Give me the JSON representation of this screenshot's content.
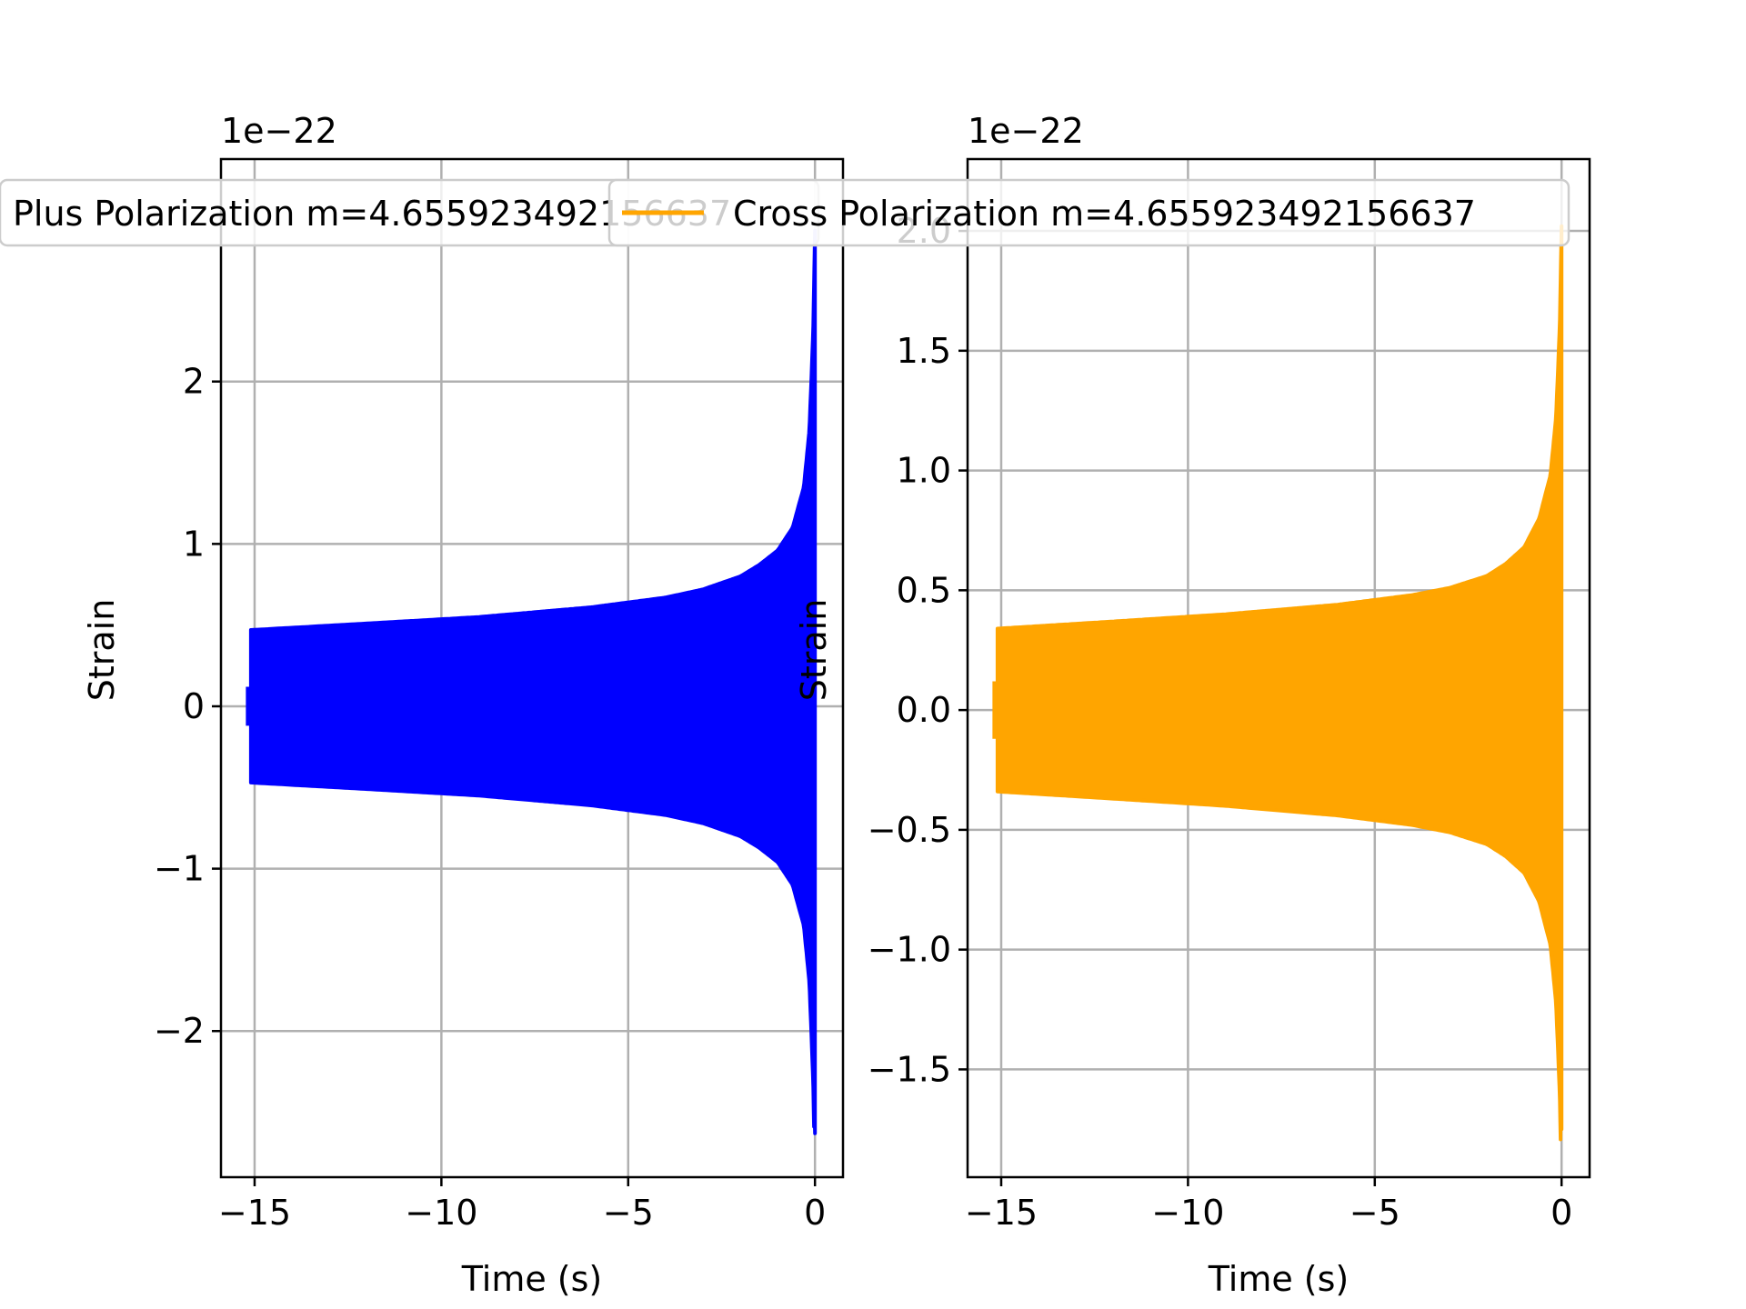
{
  "colors": {
    "background": "#ffffff",
    "grid": "#b0b0b0",
    "axes": "#000000"
  },
  "chart_data": [
    {
      "type": "line",
      "title": "",
      "xlabel": "Time (s)",
      "ylabel": "Strain",
      "offset_text": "1e−22",
      "xlim": [
        -15.9,
        0.75
      ],
      "ylim": [
        -2.9,
        3.37
      ],
      "xticks": [
        -15,
        -10,
        -5,
        0
      ],
      "xtick_labels": [
        "−15",
        "−10",
        "−5",
        "0"
      ],
      "yticks": [
        -2,
        -1,
        0,
        1,
        2
      ],
      "ytick_labels": [
        "−2",
        "−1",
        "0",
        "1",
        "2"
      ],
      "grid": true,
      "legend_position": "top-center",
      "series": [
        {
          "name": "Plus Polarization m=4.655923492156637",
          "color": "#0000ff",
          "t_start": -15.1,
          "t_end": 0.0,
          "envelope": [
            [
              -15.1,
              0.47
            ],
            [
              -12,
              0.51
            ],
            [
              -9,
              0.55
            ],
            [
              -6,
              0.61
            ],
            [
              -4,
              0.67
            ],
            [
              -3,
              0.72
            ],
            [
              -2,
              0.8
            ],
            [
              -1.5,
              0.87
            ],
            [
              -1,
              0.96
            ],
            [
              -0.6,
              1.1
            ],
            [
              -0.3,
              1.35
            ],
            [
              -0.15,
              1.7
            ],
            [
              -0.05,
              2.3
            ],
            [
              0.0,
              2.93
            ]
          ],
          "end_min": -2.63
        }
      ]
    },
    {
      "type": "line",
      "title": "",
      "xlabel": "Time (s)",
      "ylabel": "Strain",
      "offset_text": "1e−22",
      "xlim": [
        -15.9,
        0.75
      ],
      "ylim": [
        -1.95,
        2.3
      ],
      "xticks": [
        -15,
        -10,
        -5,
        0
      ],
      "xtick_labels": [
        "−15",
        "−10",
        "−5",
        "0"
      ],
      "yticks": [
        -1.5,
        -1.0,
        -0.5,
        0.0,
        0.5,
        1.0,
        1.5,
        2.0
      ],
      "ytick_labels": [
        "−1.5",
        "−1.0",
        "−0.5",
        "0.0",
        "0.5",
        "1.0",
        "1.5",
        "2.0"
      ],
      "grid": true,
      "legend_position": "top-center",
      "series": [
        {
          "name": "Cross Polarization m=4.655923492156637",
          "color": "#ffa500",
          "t_start": -15.1,
          "t_end": 0.0,
          "envelope": [
            [
              -15.1,
              0.34
            ],
            [
              -12,
              0.37
            ],
            [
              -9,
              0.4
            ],
            [
              -6,
              0.44
            ],
            [
              -4,
              0.48
            ],
            [
              -3,
              0.51
            ],
            [
              -2,
              0.56
            ],
            [
              -1.5,
              0.61
            ],
            [
              -1,
              0.68
            ],
            [
              -0.6,
              0.8
            ],
            [
              -0.3,
              0.98
            ],
            [
              -0.15,
              1.22
            ],
            [
              -0.05,
              1.6
            ],
            [
              0.0,
              2.02
            ]
          ],
          "end_min": -1.75
        }
      ]
    }
  ]
}
